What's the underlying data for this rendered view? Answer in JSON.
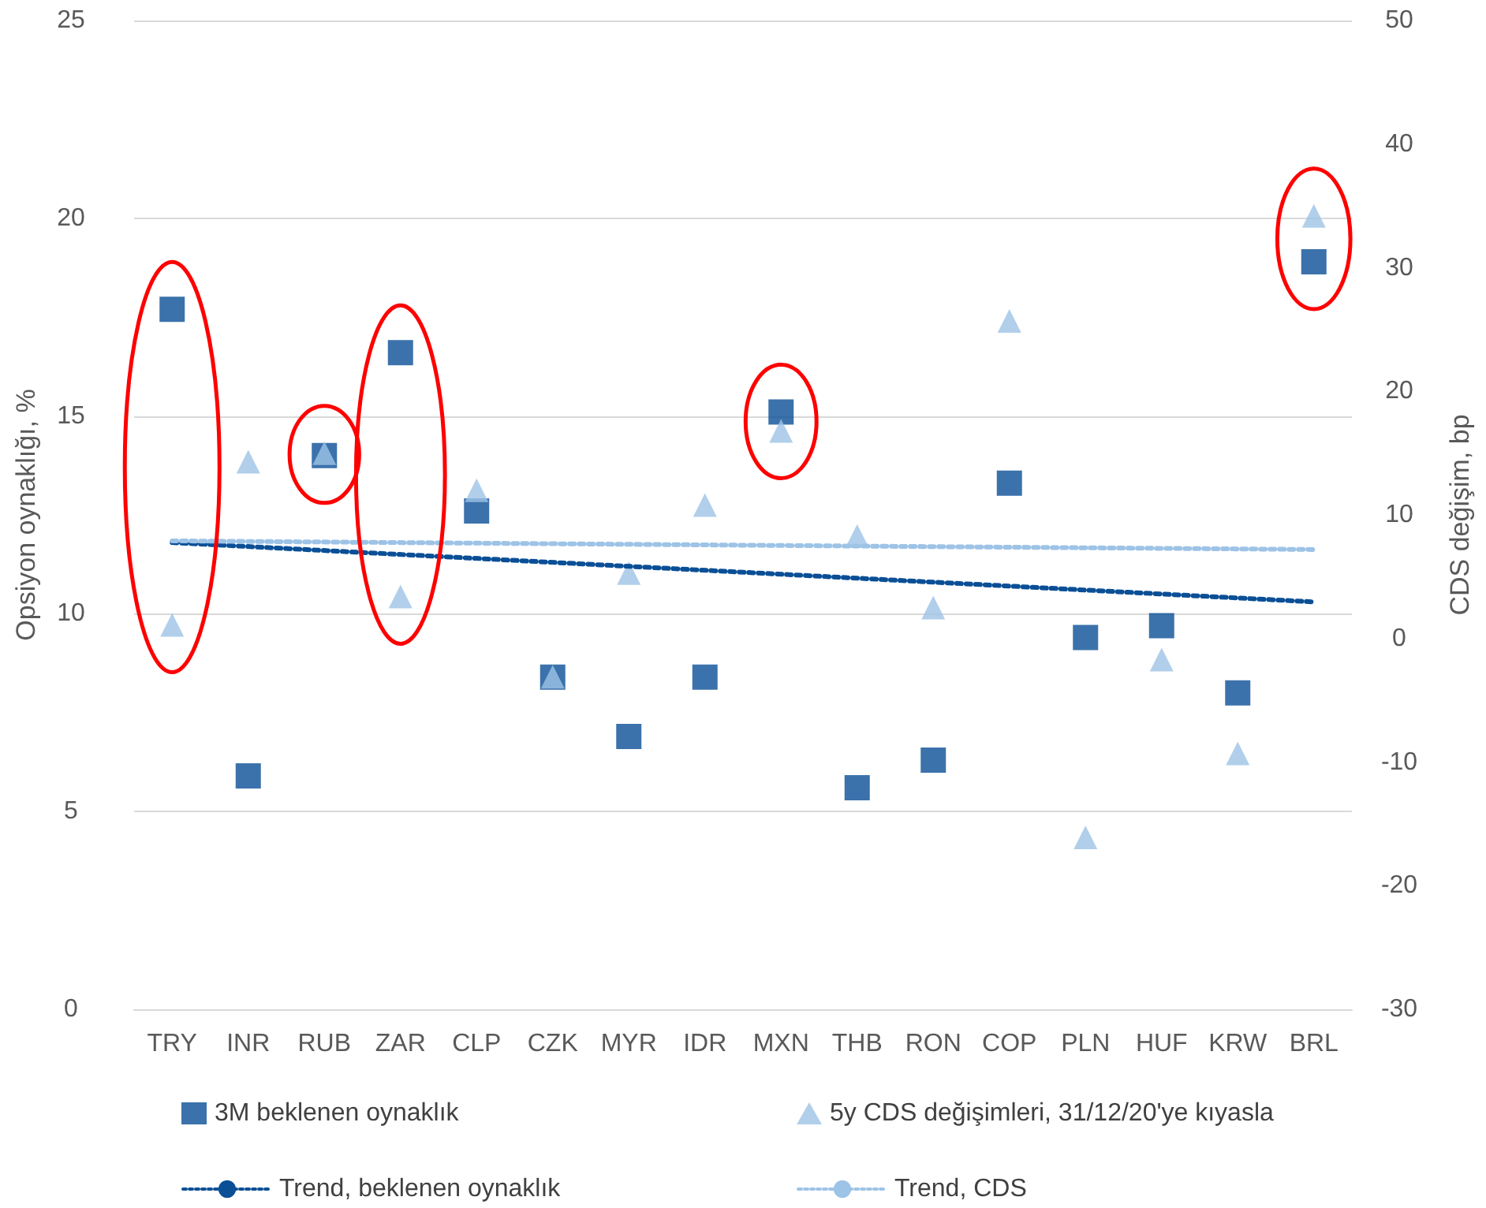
{
  "chart_data": {
    "type": "scatter",
    "categories": [
      "TRY",
      "INR",
      "RUB",
      "ZAR",
      "CLP",
      "CZK",
      "MYR",
      "IDR",
      "MXN",
      "THB",
      "RON",
      "COP",
      "PLN",
      "HUF",
      "KRW",
      "BRL"
    ],
    "series": [
      {
        "name": "3M beklenen oynaklık",
        "color": "#0a4f96",
        "marker": "square",
        "values": [
          17.7,
          5.9,
          14.0,
          16.6,
          12.6,
          8.4,
          6.9,
          8.4,
          15.1,
          5.6,
          6.3,
          13.3,
          9.4,
          9.7,
          8.0,
          18.9
        ]
      },
      {
        "name": "5y CDS değişimleri, 31/12/20'ye kıyasla",
        "color": "#9dc3e6",
        "marker": "triangle",
        "axis": "y2",
        "values": [
          1.1,
          14.3,
          15.0,
          3.4,
          12.0,
          -3.1,
          5.3,
          10.8,
          16.8,
          8.3,
          2.5,
          25.7,
          -16.1,
          -1.7,
          -9.3,
          34.2
        ]
      },
      {
        "name": "Trend, beklenen oynaklık",
        "type": "line",
        "color": "#0a4f96",
        "line_style": "dotted",
        "marker": "none",
        "x": [
          "TRY",
          "BRL"
        ],
        "values": [
          11.8,
          10.3
        ]
      },
      {
        "name": "Trend, CDS",
        "type": "line",
        "color": "#9dc3e6",
        "line_style": "dotted",
        "marker": "none",
        "axis": "y2",
        "x": [
          "TRY",
          "BRL"
        ],
        "values": [
          7.9,
          7.2
        ]
      }
    ],
    "ylabel": "Opsiyon oynaklığı, %",
    "y2label": "CDS değişim, bp",
    "ylim": [
      0,
      25
    ],
    "yticks": [
      0,
      5,
      10,
      15,
      20,
      25
    ],
    "y2lim": [
      -30,
      50
    ],
    "y2ticks": [
      -30,
      -20,
      -10,
      0,
      10,
      20,
      30,
      40,
      50
    ],
    "grid": "y",
    "legend": "bottom"
  }
}
